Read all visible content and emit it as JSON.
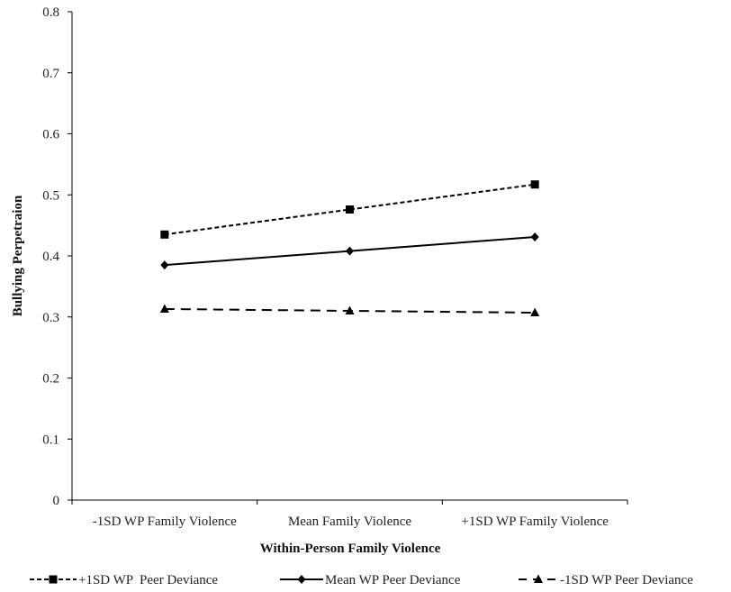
{
  "chart_data": {
    "type": "line",
    "title": "",
    "xlabel": "Within-Person Family Violence",
    "ylabel": "Bullying Perpetraion",
    "categories": [
      "-1SD WP Family Violence",
      "Mean Family Violence",
      "+1SD WP Family Violence"
    ],
    "ylim": [
      0,
      0.8
    ],
    "yticks": [
      "0",
      "0.1",
      "0.2",
      "0.3",
      "0.4",
      "0.5",
      "0.6",
      "0.7",
      "0.8"
    ],
    "grid": false,
    "legend_position": "bottom",
    "series": [
      {
        "name": "+1SD WP  Peer Deviance",
        "values": [
          0.435,
          0.476,
          0.517
        ],
        "marker": "square",
        "line": "short-dash",
        "color": "#000000"
      },
      {
        "name": "Mean WP Peer Deviance",
        "values": [
          0.385,
          0.408,
          0.431
        ],
        "marker": "diamond",
        "line": "solid",
        "color": "#000000"
      },
      {
        "name": "-1SD WP Peer Deviance",
        "values": [
          0.313,
          0.31,
          0.307
        ],
        "marker": "triangle",
        "line": "long-dash",
        "color": "#000000"
      }
    ]
  }
}
